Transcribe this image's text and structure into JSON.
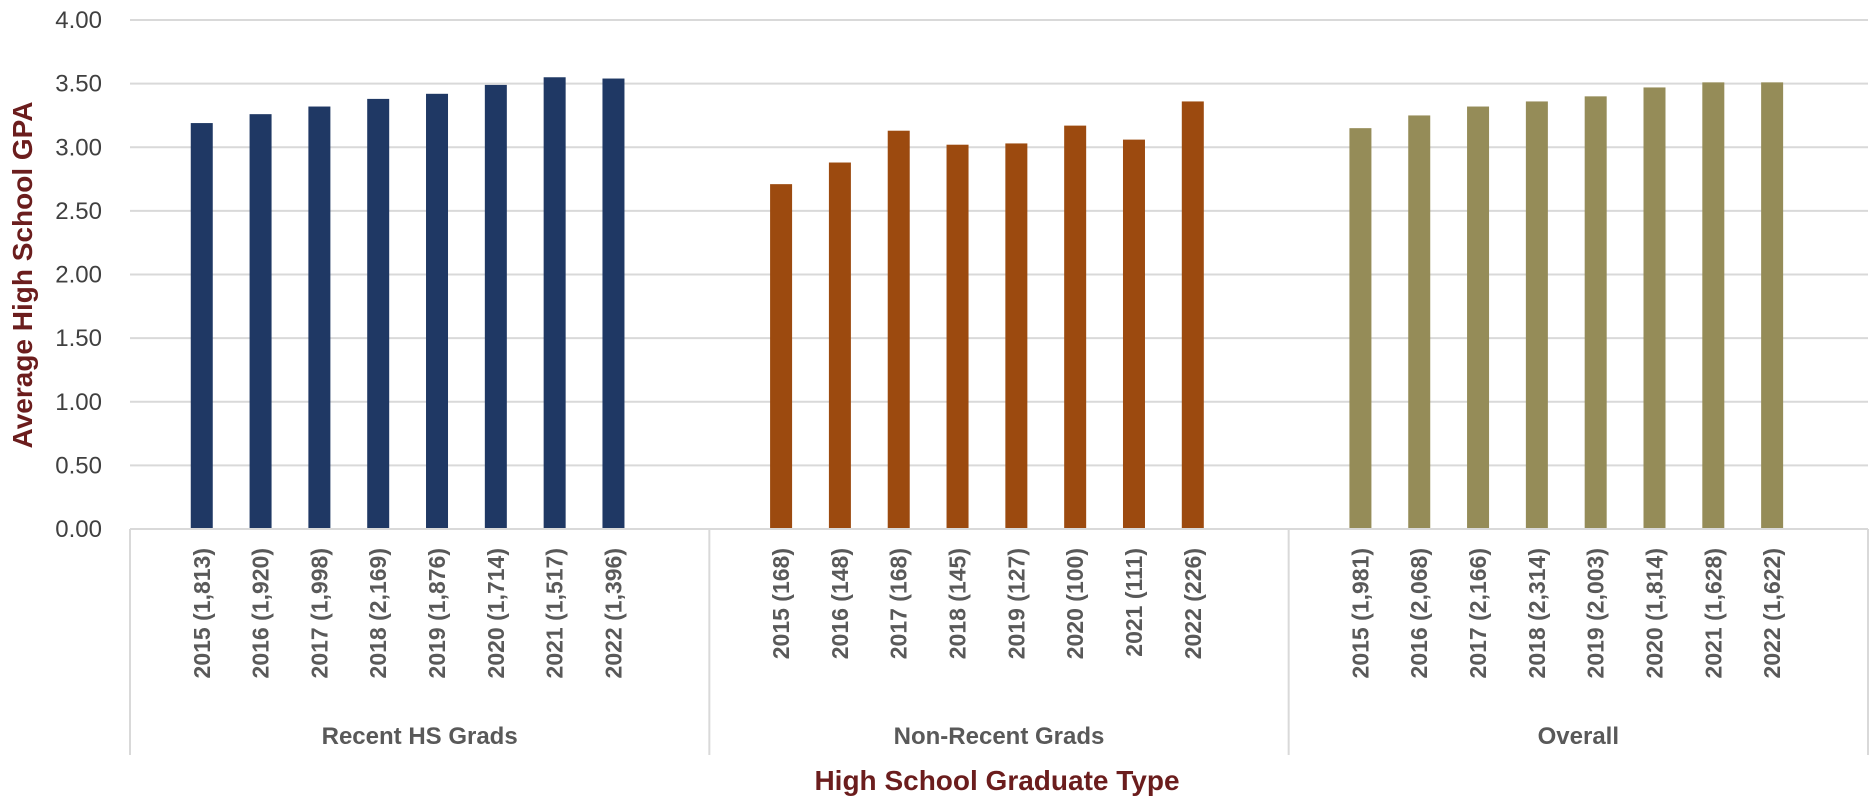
{
  "chart_data": {
    "type": "bar",
    "title": "",
    "xlabel": "High School Graduate Type",
    "ylabel": "Average High School GPA",
    "ylim": [
      0,
      4
    ],
    "yticks": [
      "0.00",
      "0.50",
      "1.00",
      "1.50",
      "2.00",
      "2.50",
      "3.00",
      "3.50",
      "4.00"
    ],
    "grid": true,
    "legend": "none",
    "groups": [
      {
        "name": "Recent HS Grads",
        "color": "#1f3864",
        "categories": [
          "2015 (1,813)",
          "2016 (1,920)",
          "2017 (1,998)",
          "2018 (2,169)",
          "2019 (1,876)",
          "2020 (1,714)",
          "2021 (1,517)",
          "2022 (1,396)"
        ],
        "values": [
          3.19,
          3.26,
          3.32,
          3.38,
          3.42,
          3.49,
          3.55,
          3.54
        ]
      },
      {
        "name": "Non-Recent Grads",
        "color": "#9c4a0f",
        "categories": [
          "2015 (168)",
          "2016 (148)",
          "2017 (168)",
          "2018 (145)",
          "2019 (127)",
          "2020 (100)",
          "2021 (111)",
          "2022 (226)"
        ],
        "values": [
          2.71,
          2.88,
          3.13,
          3.02,
          3.03,
          3.17,
          3.06,
          3.36
        ]
      },
      {
        "name": "Overall",
        "color": "#958c58",
        "categories": [
          "2015 (1,981)",
          "2016 (2,068)",
          "2017 (2,166)",
          "2018 (2,314)",
          "2019 (2,003)",
          "2020 (1,814)",
          "2021 (1,628)",
          "2022 (1,622)"
        ],
        "values": [
          3.15,
          3.25,
          3.32,
          3.36,
          3.4,
          3.47,
          3.51,
          3.51
        ]
      }
    ]
  }
}
